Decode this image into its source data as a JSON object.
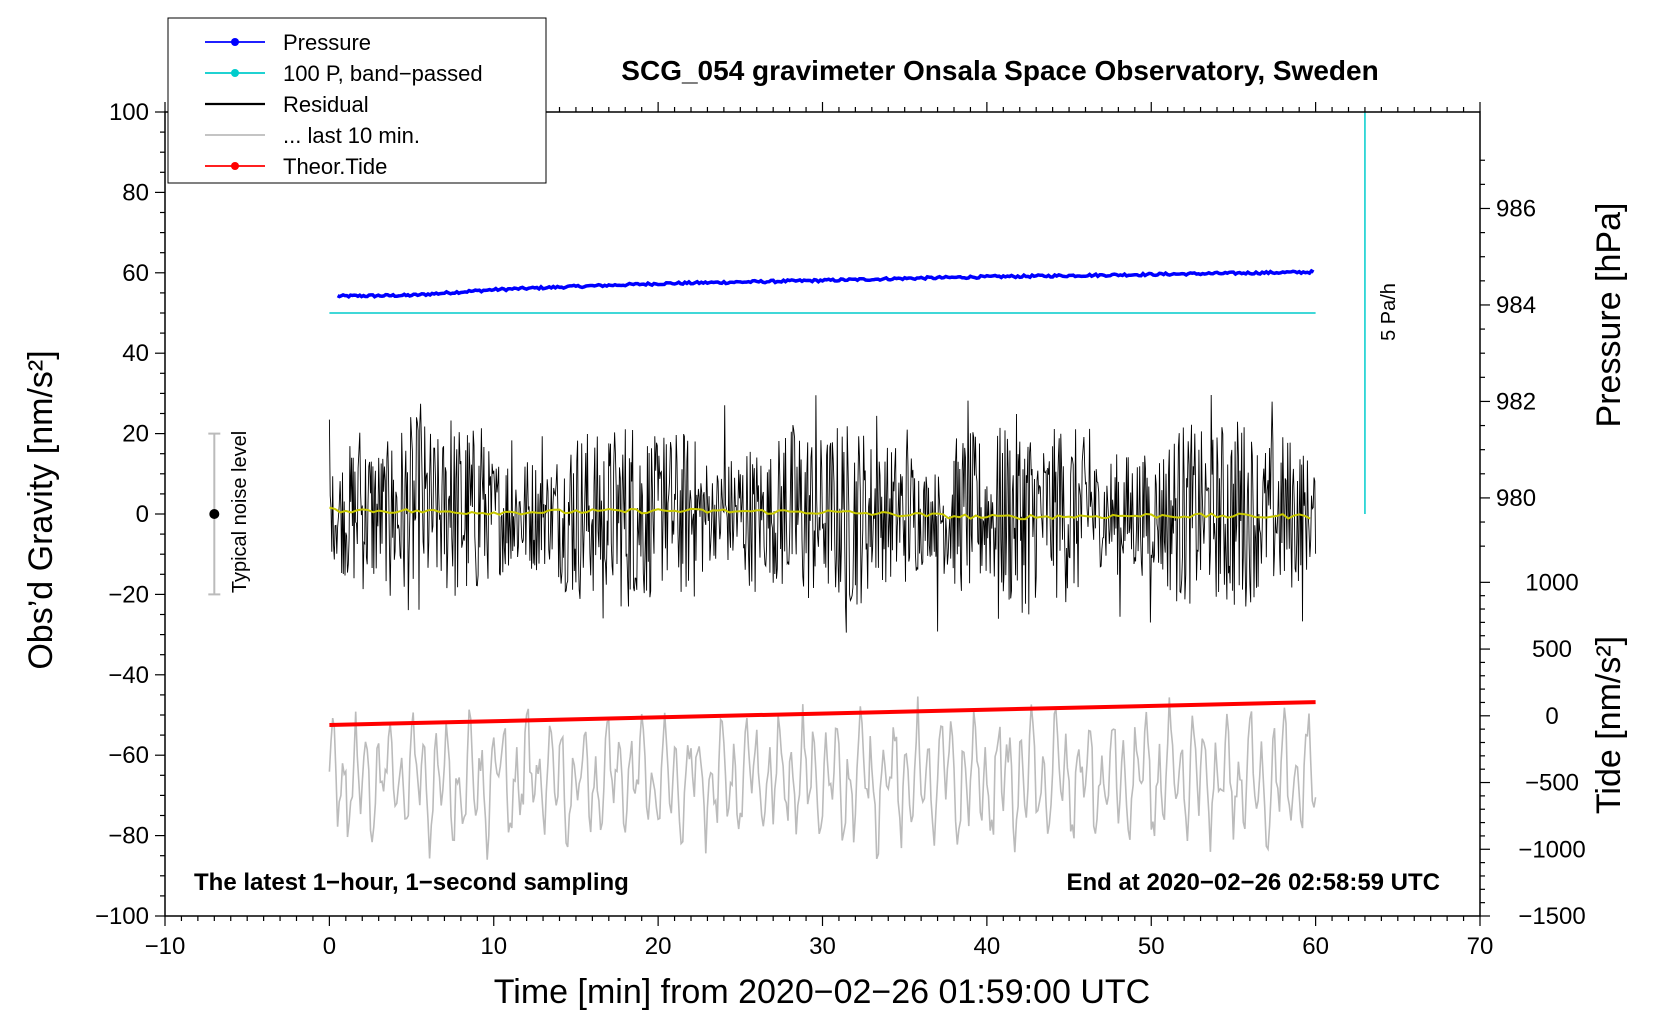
{
  "chart_data": {
    "type": "line",
    "title": "SCG_054 gravimeter Onsala Space Observatory, Sweden",
    "xlabel": "Time [min] from 2020−02−26 01:59:00 UTC",
    "ylabel_left": "Obs’d Gravity [nm/s²]",
    "ylabel_right_top": "Pressure [hPa]",
    "ylabel_right_bottom": "Tide [nm/s²]",
    "xlim": [
      -10,
      70
    ],
    "ylim": [
      -100,
      100
    ],
    "x_ticks": [
      "−10",
      "0",
      "10",
      "20",
      "30",
      "40",
      "50",
      "60",
      "70"
    ],
    "y_ticks": [
      "100",
      "80",
      "60",
      "40",
      "20",
      "0",
      "−20",
      "−40",
      "−60",
      "−80",
      "−100"
    ],
    "pressure_ticks": [
      "986",
      "984",
      "982",
      "980"
    ],
    "pressure_range": [
      978,
      988
    ],
    "tide_ticks": [
      "1000",
      "500",
      "0",
      "−500",
      "−1000",
      "−1500"
    ],
    "tide_range": [
      -1500,
      1500
    ],
    "legend": {
      "position": "top-left",
      "entries": [
        {
          "label": "Pressure",
          "color": "#0000ff",
          "marker": true
        },
        {
          "label": "100 P, band−passed",
          "color": "#00cccc",
          "marker": true
        },
        {
          "label": "Residual",
          "color": "#000000",
          "marker": false
        },
        {
          "label": "... last 10 min.",
          "color": "#bbbbbb",
          "marker": false
        },
        {
          "label": "Theor.Tide",
          "color": "#ff0000",
          "marker": true
        }
      ]
    },
    "series": [
      {
        "name": "Pressure",
        "color": "#0000ff",
        "x": [
          0.5,
          5,
          10,
          15,
          20,
          25,
          30,
          35,
          40,
          45,
          50,
          55,
          60
        ],
        "values": [
          54.2,
          54.4,
          55.8,
          56.6,
          57.3,
          57.7,
          58.1,
          58.6,
          59.0,
          59.3,
          59.6,
          59.9,
          60.2
        ]
      },
      {
        "name": "100 P, band−passed",
        "color": "#00cccc",
        "x": [
          0,
          60
        ],
        "values": [
          50,
          50
        ]
      },
      {
        "name": "Residual",
        "color": "#000000",
        "x_range": [
          0,
          60
        ],
        "center": 0,
        "amplitude_range": [
          -36,
          33
        ]
      },
      {
        "name": "Residual smoothed",
        "color": "#c8c800",
        "x": [
          0,
          10,
          20,
          30,
          40,
          50,
          60
        ],
        "values": [
          1.0,
          0.4,
          0.8,
          0.5,
          -0.8,
          -0.4,
          -0.6
        ]
      },
      {
        "name": "... last 10 min.",
        "color": "#bbbbbb",
        "x_range": [
          0,
          60
        ],
        "center": -66,
        "amplitude_range": [
          -86,
          -37
        ]
      },
      {
        "name": "Theor.Tide",
        "color": "#ff0000",
        "x": [
          0,
          60
        ],
        "values": [
          -52.5,
          -46.8
        ]
      }
    ],
    "noise_indicator": {
      "label": "Typical noise level",
      "x": -7,
      "y_center": 0,
      "y_range": [
        -20,
        20
      ]
    },
    "vertical_scale_bar": {
      "label": "5 Pa/h",
      "x": 63,
      "y_range": [
        0,
        100
      ]
    },
    "annotations": {
      "bottom_left": "The latest 1−hour, 1−second sampling",
      "bottom_right": "End at 2020−02−26 02:58:59 UTC"
    }
  }
}
